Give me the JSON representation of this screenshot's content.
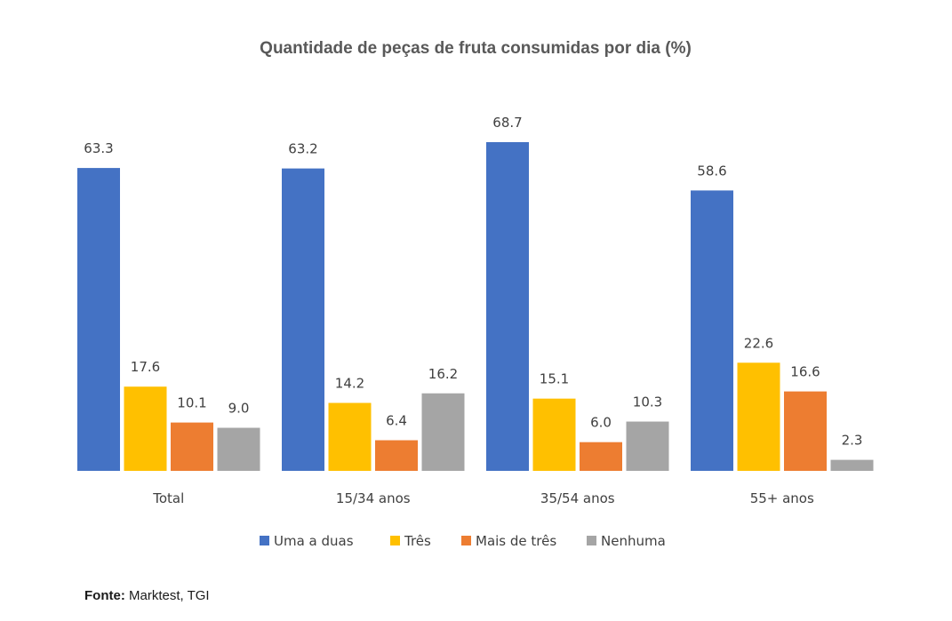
{
  "chart_data": {
    "type": "bar",
    "title": "Quantidade de peças de fruta consumidas por dia (%)",
    "xlabel": "",
    "ylabel": "",
    "categories": [
      "Total",
      "15/34 anos",
      "35/54 anos",
      "55+ anos"
    ],
    "series": [
      {
        "name": "Uma a duas",
        "color": "#4472C4",
        "values": [
          63.3,
          63.2,
          68.7,
          58.6
        ]
      },
      {
        "name": "Três",
        "color": "#FFC000",
        "values": [
          17.6,
          14.2,
          15.1,
          22.6
        ]
      },
      {
        "name": "Mais de três",
        "color": "#ED7D31",
        "values": [
          10.1,
          6.4,
          6.0,
          16.6
        ]
      },
      {
        "name": "Nenhuma",
        "color": "#A5A5A5",
        "values": [
          9.0,
          16.2,
          10.3,
          2.3
        ]
      }
    ],
    "ylim": [
      0,
      68.7
    ],
    "grid": false,
    "legend": "bottom",
    "data_labels": true
  },
  "source": {
    "label": "Fonte:",
    "text": " Marktest, TGI"
  }
}
